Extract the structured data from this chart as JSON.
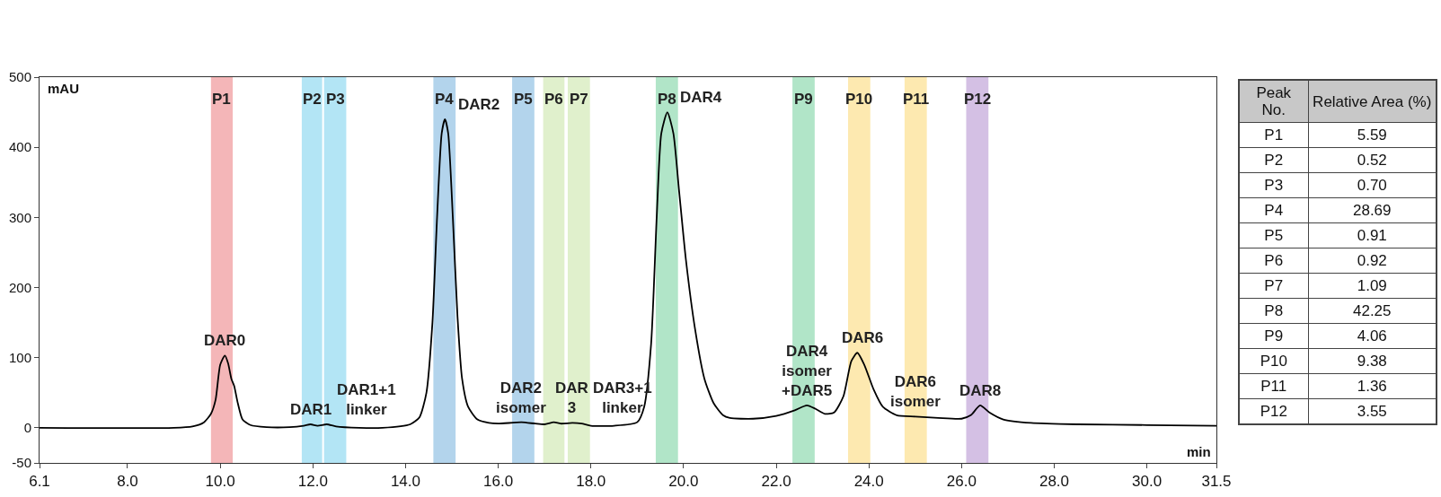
{
  "chart_data": [
    {
      "type": "line",
      "xlabel": "min",
      "ylabel": "mAU",
      "x": [
        6.1,
        9.0,
        9.4,
        9.65,
        9.8,
        9.9,
        10.0,
        10.1,
        10.17,
        10.24,
        10.3,
        10.38,
        10.48,
        10.65,
        11.0,
        11.5,
        11.8,
        11.95,
        12.1,
        12.3,
        12.5,
        13.0,
        13.5,
        14.1,
        14.3,
        14.45,
        14.58,
        14.68,
        14.78,
        14.85,
        14.92,
        15.02,
        15.12,
        15.22,
        15.35,
        15.55,
        15.8,
        16.0,
        16.5,
        16.8,
        17.0,
        17.2,
        17.35,
        17.6,
        17.8,
        18.0,
        18.5,
        19.0,
        19.15,
        19.3,
        19.42,
        19.52,
        19.65,
        19.78,
        19.9,
        20.05,
        20.25,
        20.45,
        20.65,
        20.85,
        21.0,
        21.5,
        22.0,
        22.4,
        22.66,
        22.85,
        23.05,
        23.25,
        23.45,
        23.62,
        23.75,
        23.9,
        24.1,
        24.3,
        24.6,
        25.0,
        25.5,
        26.0,
        26.2,
        26.4,
        26.6,
        26.9,
        27.5,
        28.5,
        30.0,
        31.5
      ],
      "series": [
        {
          "color": "#000000",
          "values": [
            0,
            0,
            2,
            8,
            20,
            40,
            90,
            103,
            92,
            70,
            60,
            35,
            12,
            4,
            1,
            1,
            3,
            5,
            3,
            5,
            2,
            0,
            0,
            5,
            15,
            50,
            150,
            300,
            420,
            440,
            420,
            300,
            160,
            70,
            30,
            12,
            7,
            6,
            8,
            6,
            5,
            8,
            6,
            7,
            6,
            3,
            3,
            8,
            30,
            120,
            300,
            420,
            450,
            420,
            340,
            240,
            140,
            70,
            35,
            18,
            14,
            13,
            17,
            25,
            32,
            27,
            20,
            22,
            45,
            95,
            107,
            90,
            55,
            30,
            18,
            16,
            14,
            13,
            18,
            32,
            22,
            12,
            7,
            5,
            4,
            3
          ]
        }
      ],
      "xlim": [
        6.1,
        31.5
      ],
      "ylim": [
        -50,
        500
      ],
      "xticks": [
        6.1,
        {
          "value": 8,
          "label": "8.0"
        },
        {
          "value": 10,
          "label": "10.0"
        },
        {
          "value": 12,
          "label": "12.0"
        },
        {
          "value": 14,
          "label": "14.0"
        },
        {
          "value": 16,
          "label": "16.0"
        },
        {
          "value": 18,
          "label": "18.0"
        },
        {
          "value": 20,
          "label": "20.0"
        },
        {
          "value": 22,
          "label": "22.0"
        },
        {
          "value": 24,
          "label": "24.0"
        },
        {
          "value": 26,
          "label": "26.0"
        },
        {
          "value": 28,
          "label": "28.0"
        },
        {
          "value": 30,
          "label": "30.0"
        },
        31.5
      ],
      "yticks": [
        -50,
        0,
        100,
        200,
        300,
        400,
        500
      ],
      "grid": false,
      "marker": "none",
      "line_style": "solid",
      "bands": [
        {
          "axis": "x",
          "from": 9.8,
          "to": 10.27,
          "label": "P1",
          "color": "#f4b6b8"
        },
        {
          "axis": "x",
          "from": 11.76,
          "to": 12.2,
          "label": "P2",
          "color": "#b3e5f5"
        },
        {
          "axis": "x",
          "from": 12.24,
          "to": 12.72,
          "label": "P3",
          "color": "#b3e5f5"
        },
        {
          "axis": "x",
          "from": 14.6,
          "to": 15.08,
          "label": "P4",
          "color": "#b3d4ec"
        },
        {
          "axis": "x",
          "from": 16.3,
          "to": 16.78,
          "label": "P5",
          "color": "#b3d4ec"
        },
        {
          "axis": "x",
          "from": 16.97,
          "to": 17.43,
          "label": "P6",
          "color": "#e0f0cc"
        },
        {
          "axis": "x",
          "from": 17.5,
          "to": 17.98,
          "label": "P7",
          "color": "#e0f0cc"
        },
        {
          "axis": "x",
          "from": 19.4,
          "to": 19.88,
          "label": "P8",
          "color": "#b1e5c8"
        },
        {
          "axis": "x",
          "from": 22.35,
          "to": 22.83,
          "label": "P9",
          "color": "#b1e5c8"
        },
        {
          "axis": "x",
          "from": 23.55,
          "to": 24.03,
          "label": "P10",
          "color": "#fde9b0"
        },
        {
          "axis": "x",
          "from": 24.77,
          "to": 25.25,
          "label": "P11",
          "color": "#fde9b0"
        },
        {
          "axis": "x",
          "from": 26.1,
          "to": 26.58,
          "label": "P12",
          "color": "#d4c0e4"
        }
      ],
      "annotations": [
        {
          "text": "DAR0",
          "x": 10.1,
          "y": 103
        },
        {
          "text": "DAR1",
          "x": 11.95,
          "y": 5
        },
        {
          "text": "DAR1+1\nlinker",
          "x": 12.3,
          "y": 5
        },
        {
          "text": "DAR2",
          "x": 14.85,
          "y": 440
        },
        {
          "text": "DAR2\nisomer",
          "x": 16.5,
          "y": 8
        },
        {
          "text": "DAR\n3",
          "x": 17.2,
          "y": 8
        },
        {
          "text": "DAR3+1\nlinker",
          "x": 17.6,
          "y": 7
        },
        {
          "text": "DAR4",
          "x": 19.65,
          "y": 450
        },
        {
          "text": "DAR4\nisomer\n+DAR5",
          "x": 22.66,
          "y": 32
        },
        {
          "text": "DAR6",
          "x": 23.75,
          "y": 107
        },
        {
          "text": "DAR6\nisomer",
          "x": 25.0,
          "y": 16
        },
        {
          "text": "DAR8",
          "x": 26.4,
          "y": 32
        }
      ]
    },
    {
      "type": "other",
      "xlabel": "Peak No.",
      "ylabel": "Relative Area (%)",
      "categories": [
        "P1",
        "P2",
        "P3",
        "P4",
        "P5",
        "P6",
        "P7",
        "P8",
        "P9",
        "P10",
        "P11",
        "P12"
      ],
      "values": [
        5.59,
        0.52,
        0.7,
        28.69,
        0.91,
        0.92,
        1.09,
        42.25,
        4.06,
        9.38,
        1.36,
        3.55
      ],
      "value_labels": [
        "5.59",
        "0.52",
        "0.70",
        "28.69",
        "0.91",
        "0.92",
        "1.09",
        "42.25",
        "4.06",
        "9.38",
        "1.36",
        "3.55"
      ]
    }
  ]
}
